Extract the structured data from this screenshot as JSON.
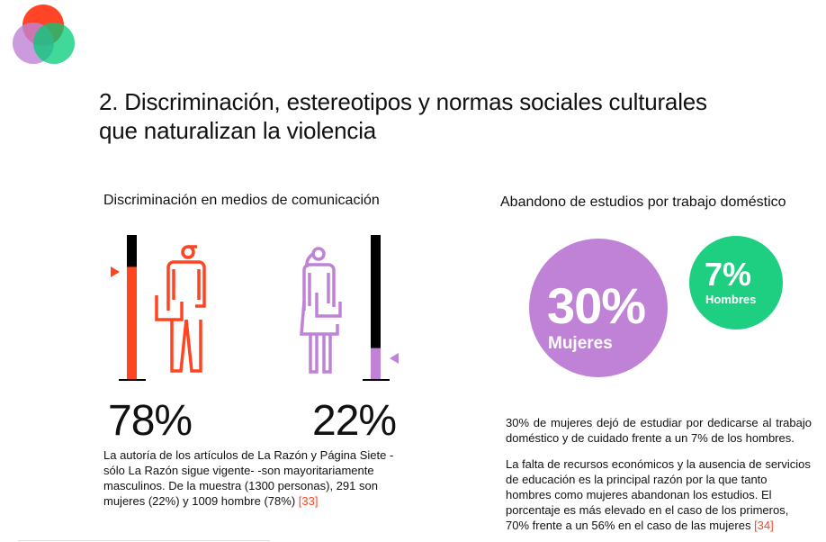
{
  "colors": {
    "accent_red": "#ff4422",
    "purple": "#bf82d6",
    "green": "#1ecf82"
  },
  "logo": {
    "icon": "three-overlapping-circles-logo"
  },
  "title_line1": "2. Discriminación, estereotipos y  normas sociales culturales",
  "title_line2": "que naturalizan la violencia",
  "left": {
    "heading": "Discriminación en medios de comunicación",
    "men": {
      "percent_label": "78%",
      "value": 0.78,
      "icon": "man-icon"
    },
    "women": {
      "percent_label": "22%",
      "value": 0.22,
      "icon": "woman-icon"
    },
    "paragraph": "La autoría de los artículos de La Razón y Página Siete - sólo La Razón sigue vigente- -son mayoritariamente masculinos. De la muestra (1300 personas), 291 son mujeres (22%) y 1009 hombre (78%) ",
    "reference": "[33]"
  },
  "right": {
    "heading": "Abandono de estudios por trabajo doméstico",
    "women": {
      "percent": "30%",
      "label": "Mujeres"
    },
    "men": {
      "percent": "7%",
      "label": "Hombres"
    },
    "paragraph1": "30% de mujeres dejó de estudiar por dedicarse al trabajo doméstico y de cuidado frente a un 7% de los hombres.",
    "paragraph2": "La falta de recursos económicos y la ausencia de servicios de educación es la principal razón por la que tanto hombres como mujeres abandonan los estudios. El porcentaje es más elevado en el caso de los primeros, 70% frente a un 56% en el caso de las mujeres ",
    "reference": "[34]"
  }
}
